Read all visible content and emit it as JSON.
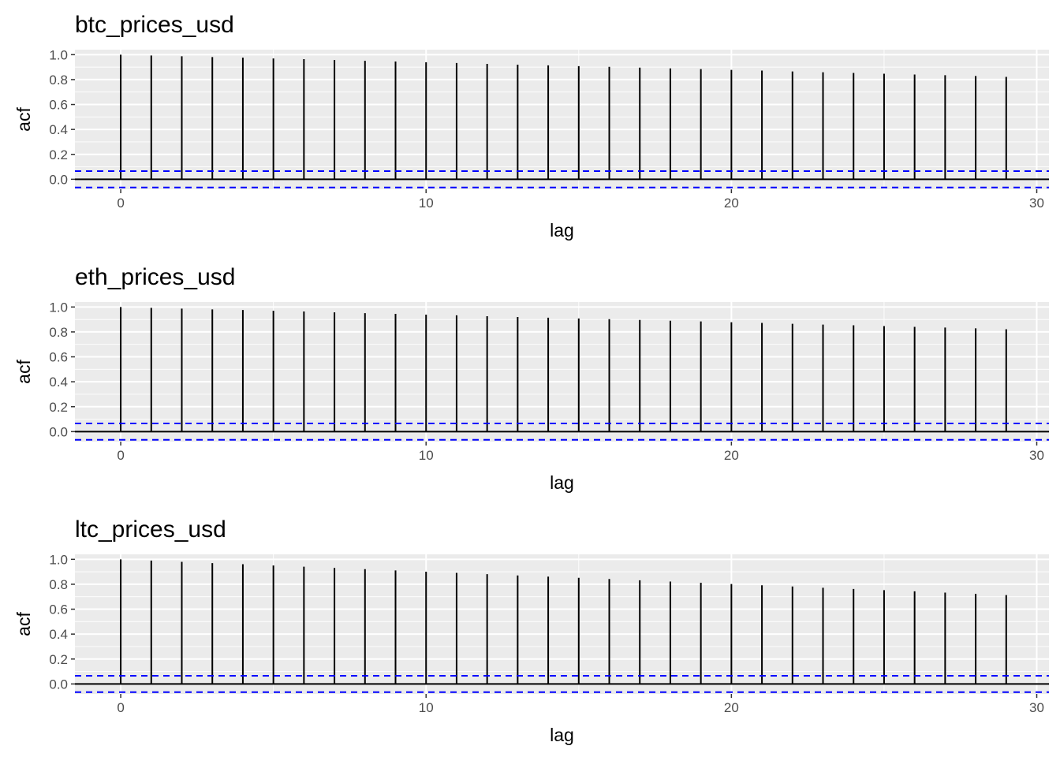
{
  "chart_data": [
    {
      "type": "bar",
      "title": "btc_prices_usd",
      "xlabel": "lag",
      "ylabel": "acf",
      "xlim": [
        -1.5,
        30.4
      ],
      "ylim": [
        -0.08,
        1.04
      ],
      "xticks": [
        0,
        10,
        20,
        30
      ],
      "yticks": [
        0.0,
        0.2,
        0.4,
        0.6,
        0.8,
        1.0
      ],
      "ci": 0.0658,
      "grid": true,
      "lags": [
        0,
        1,
        2,
        3,
        4,
        5,
        6,
        7,
        8,
        9,
        10,
        11,
        12,
        13,
        14,
        15,
        16,
        17,
        18,
        19,
        20,
        21,
        22,
        23,
        24,
        25,
        26,
        27,
        28,
        29
      ],
      "values": [
        1.0,
        0.993,
        0.987,
        0.981,
        0.976,
        0.97,
        0.964,
        0.957,
        0.951,
        0.945,
        0.939,
        0.933,
        0.926,
        0.92,
        0.914,
        0.908,
        0.902,
        0.896,
        0.89,
        0.884,
        0.878,
        0.872,
        0.865,
        0.859,
        0.853,
        0.847,
        0.841,
        0.835,
        0.829,
        0.822
      ]
    },
    {
      "type": "bar",
      "title": "eth_prices_usd",
      "xlabel": "lag",
      "ylabel": "acf",
      "xlim": [
        -1.5,
        30.4
      ],
      "ylim": [
        -0.08,
        1.04
      ],
      "xticks": [
        0,
        10,
        20,
        30
      ],
      "yticks": [
        0.0,
        0.2,
        0.4,
        0.6,
        0.8,
        1.0
      ],
      "ci": 0.0658,
      "grid": true,
      "lags": [
        0,
        1,
        2,
        3,
        4,
        5,
        6,
        7,
        8,
        9,
        10,
        11,
        12,
        13,
        14,
        15,
        16,
        17,
        18,
        19,
        20,
        21,
        22,
        23,
        24,
        25,
        26,
        27,
        28,
        29
      ],
      "values": [
        1.0,
        0.993,
        0.987,
        0.981,
        0.976,
        0.97,
        0.964,
        0.957,
        0.951,
        0.945,
        0.939,
        0.933,
        0.926,
        0.92,
        0.914,
        0.908,
        0.902,
        0.896,
        0.89,
        0.884,
        0.878,
        0.872,
        0.865,
        0.859,
        0.853,
        0.847,
        0.841,
        0.835,
        0.829,
        0.822
      ]
    },
    {
      "type": "bar",
      "title": "ltc_prices_usd",
      "xlabel": "lag",
      "ylabel": "acf",
      "xlim": [
        -1.5,
        30.4
      ],
      "ylim": [
        -0.08,
        1.04
      ],
      "xticks": [
        0,
        10,
        20,
        30
      ],
      "yticks": [
        0.0,
        0.2,
        0.4,
        0.6,
        0.8,
        1.0
      ],
      "ci": 0.0658,
      "grid": true,
      "lags": [
        0,
        1,
        2,
        3,
        4,
        5,
        6,
        7,
        8,
        9,
        10,
        11,
        12,
        13,
        14,
        15,
        16,
        17,
        18,
        19,
        20,
        21,
        22,
        23,
        24,
        25,
        26,
        27,
        28,
        29
      ],
      "values": [
        1.0,
        0.99,
        0.98,
        0.97,
        0.961,
        0.951,
        0.941,
        0.931,
        0.921,
        0.911,
        0.901,
        0.891,
        0.881,
        0.871,
        0.861,
        0.852,
        0.842,
        0.832,
        0.822,
        0.812,
        0.802,
        0.792,
        0.782,
        0.772,
        0.762,
        0.753,
        0.743,
        0.733,
        0.723,
        0.713
      ]
    }
  ]
}
